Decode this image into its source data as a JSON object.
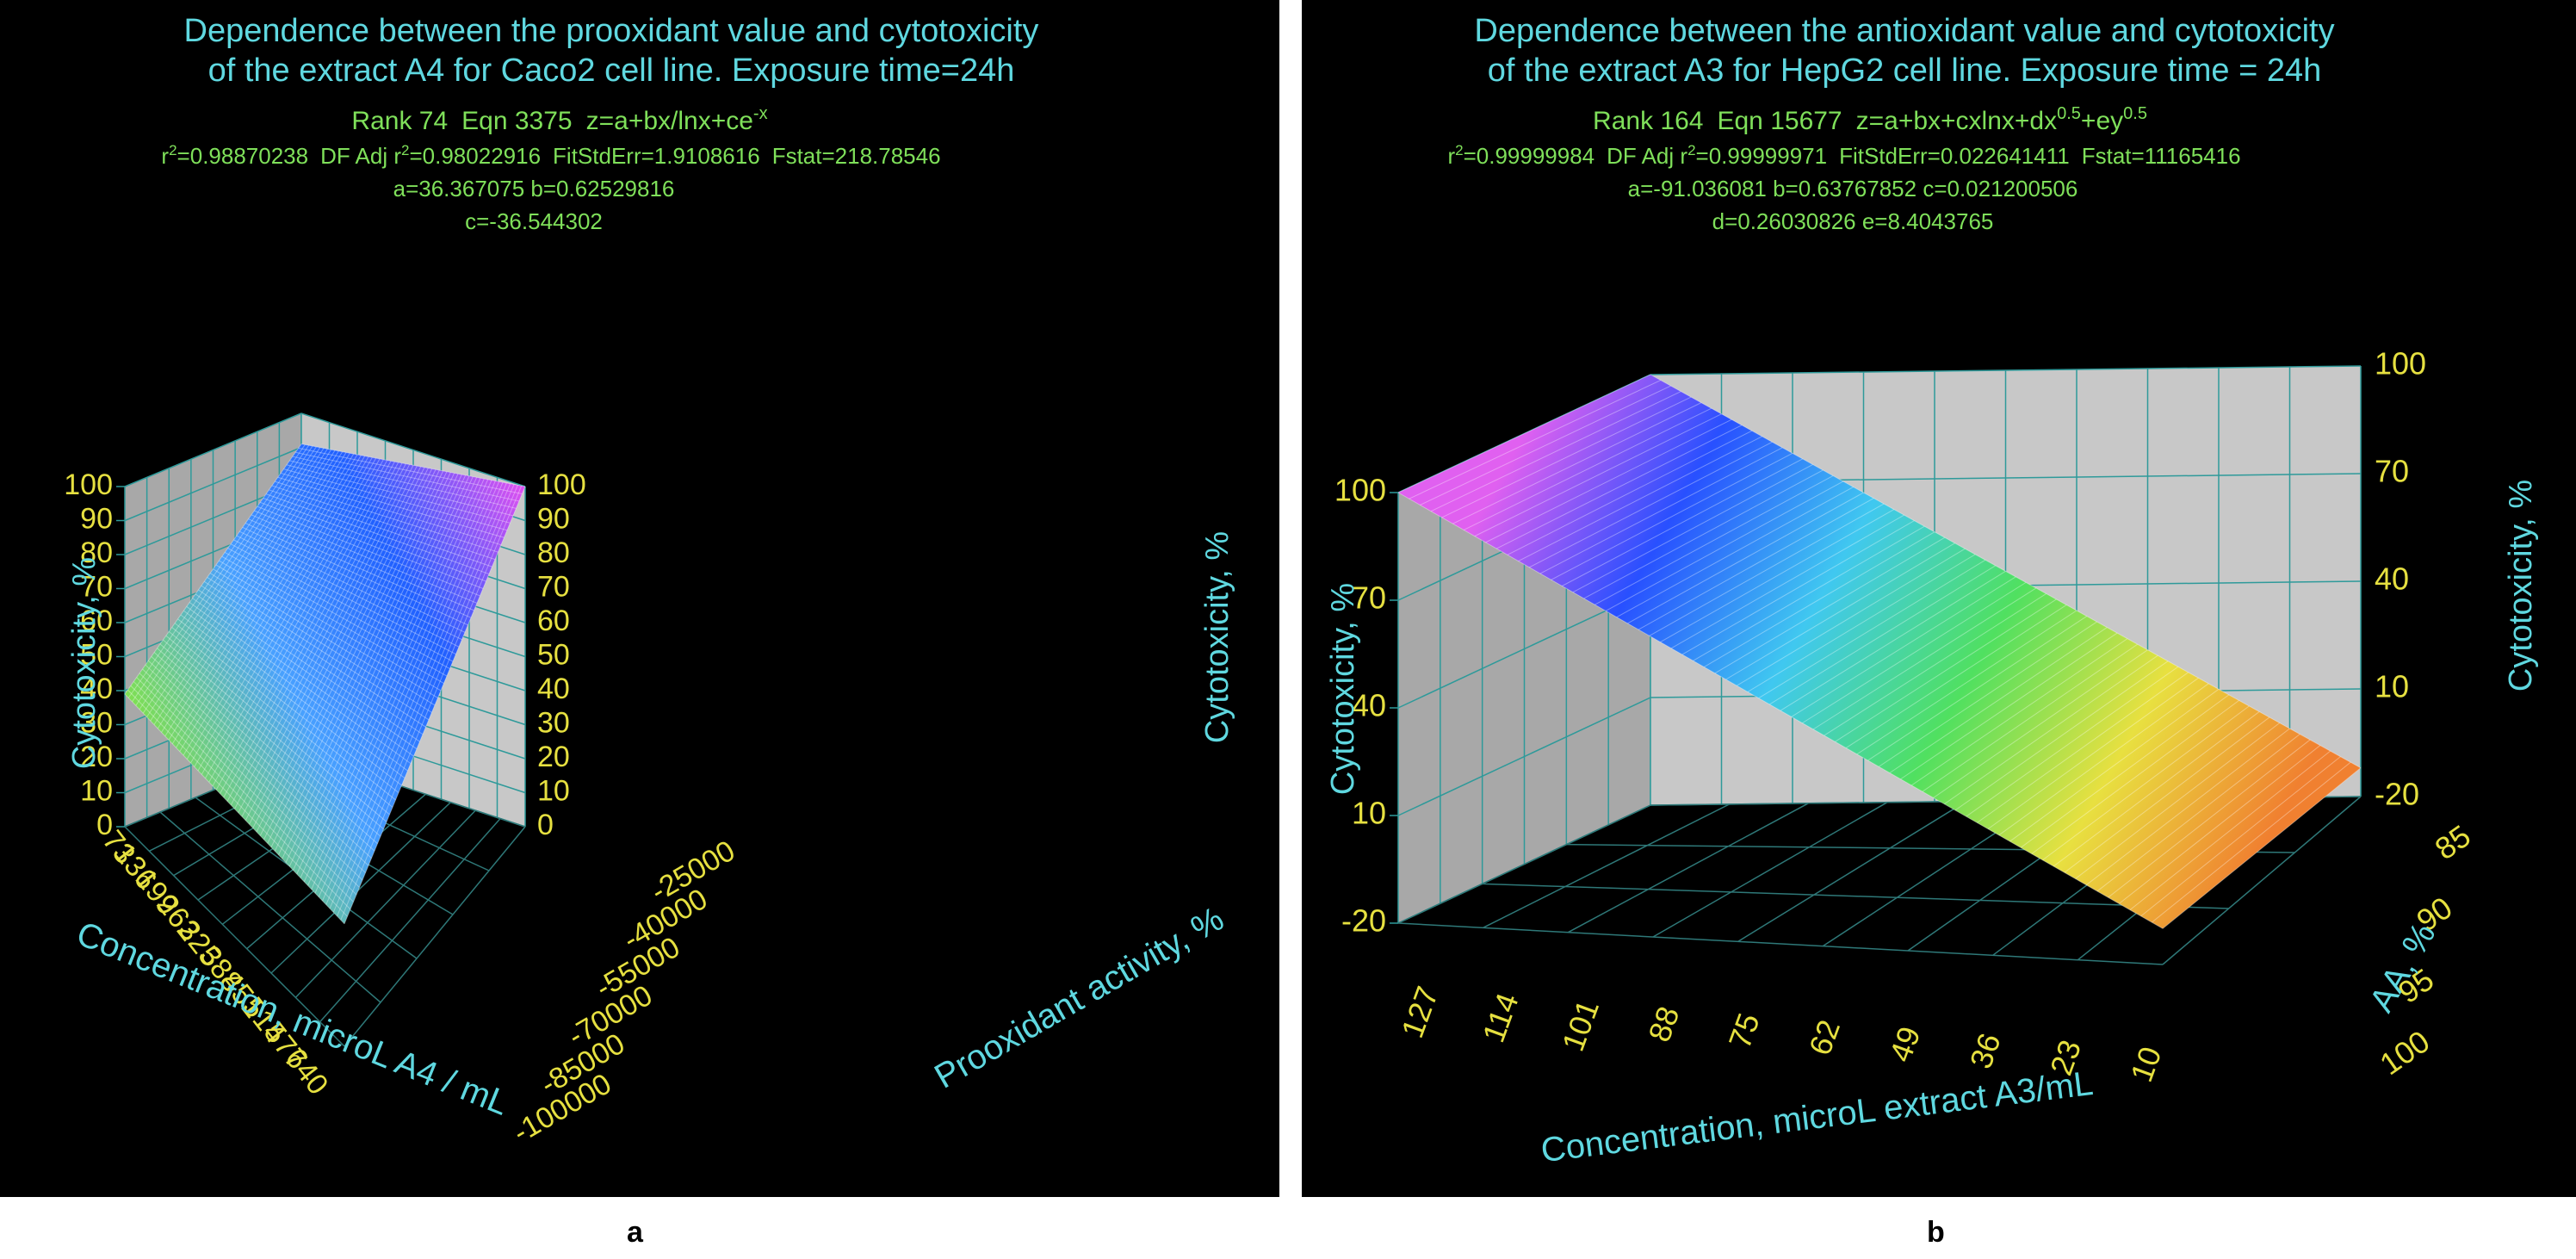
{
  "captions": [
    "a",
    "b"
  ],
  "colors": {
    "background": "#000000",
    "title": "#5fd8e0",
    "equation": "#7fe05a",
    "tick": "#e6e040",
    "axis_title": "#5fd8e0",
    "wall": "#c8c8c8",
    "wall_grid": "#2e9a9a",
    "floor_grid": "#2e7878"
  },
  "chart_data": [
    {
      "panel": "a",
      "type": "surface",
      "title": [
        "Dependence between the prooxidant value and cytotoxicity",
        "of the extract A4 for Caco2 cell line. Exposure time=24h"
      ],
      "equation": {
        "rank": "Rank 74",
        "eqn": "Eqn 3375",
        "formula_text": "z=a+bx/lnx+ce",
        "formula_sup": "-x",
        "r2_text": "r",
        "r2_value": "=0.98870238",
        "adj_text": "DF Adj r",
        "adj_value": "=0.98022916",
        "fitstderr": "FitStdErr=1.9108616",
        "fstat": "Fstat=218.78546",
        "params_line1": "a=36.367075 b=0.62529816",
        "params_line2": "c=-36.544302"
      },
      "z_label": "Cytotoxicity, %",
      "z_ticks": [
        "0",
        "10",
        "20",
        "30",
        "40",
        "50",
        "60",
        "70",
        "80",
        "90",
        "100"
      ],
      "z_ticks_right": [
        "0",
        "10",
        "20",
        "30",
        "40",
        "50",
        "60",
        "70",
        "80",
        "90",
        "100"
      ],
      "zlim": [
        0,
        100
      ],
      "x_label": "Concentration, microL A4 / mL",
      "x_ticks": [
        "73",
        "136",
        "199",
        "262",
        "325",
        "388",
        "451",
        "514",
        "577",
        "640"
      ],
      "y_label": "Prooxidant activity, %",
      "y_ticks": [
        "-25000",
        "-40000",
        "-55000",
        "-70000",
        "-85000",
        "-100000"
      ],
      "surface_corners_z": {
        "x_min_y_min": 39,
        "x_max_y_min": 36,
        "x_min_y_max": 91,
        "x_max_y_max": 100
      },
      "colormap": [
        "#7fe050",
        "#48a0ff",
        "#2060ff",
        "#e050f0"
      ]
    },
    {
      "panel": "b",
      "type": "surface",
      "title": [
        "Dependence between the antioxidant value and cytotoxicity",
        "of the extract A3 for HepG2 cell line. Exposure time = 24h"
      ],
      "equation": {
        "rank": "Rank 164",
        "eqn": "Eqn 15677",
        "formula_text": "z=a+bx+cxlnx+dx",
        "formula_sup": "0.5",
        "formula_text2": "+ey",
        "formula_sup2": "0.5",
        "r2_text": "r",
        "r2_value": "=0.99999984",
        "adj_text": "DF Adj r",
        "adj_value": "=0.99999971",
        "fitstderr": "FitStdErr=0.022641411",
        "fstat": "Fstat=11165416",
        "params_line1": "a=-91.036081 b=0.63767852 c=0.021200506",
        "params_line2": "d=0.26030826 e=8.4043765"
      },
      "z_label": "Cytotoxicity, %",
      "z_ticks": [
        "-20",
        "10",
        "40",
        "70",
        "100"
      ],
      "z_ticks_right": [
        "-20",
        "10",
        "40",
        "70",
        "100"
      ],
      "zlim": [
        -20,
        100
      ],
      "x_label": "Concentration, microL extract A3/mL",
      "x_ticks": [
        "127",
        "114",
        "101",
        "88",
        "75",
        "62",
        "49",
        "36",
        "23",
        "10"
      ],
      "y_label": "AA, %",
      "y_ticks": [
        "85",
        "90",
        "95",
        "100"
      ],
      "surface_corners_z": {
        "x_min_y_min": 100,
        "x_max_y_min": -10,
        "x_min_y_max": 100,
        "x_max_y_max": -12
      },
      "colormap": [
        "#e060f0",
        "#2850ff",
        "#40c8f0",
        "#50e060",
        "#e8e040",
        "#f08030"
      ]
    }
  ]
}
